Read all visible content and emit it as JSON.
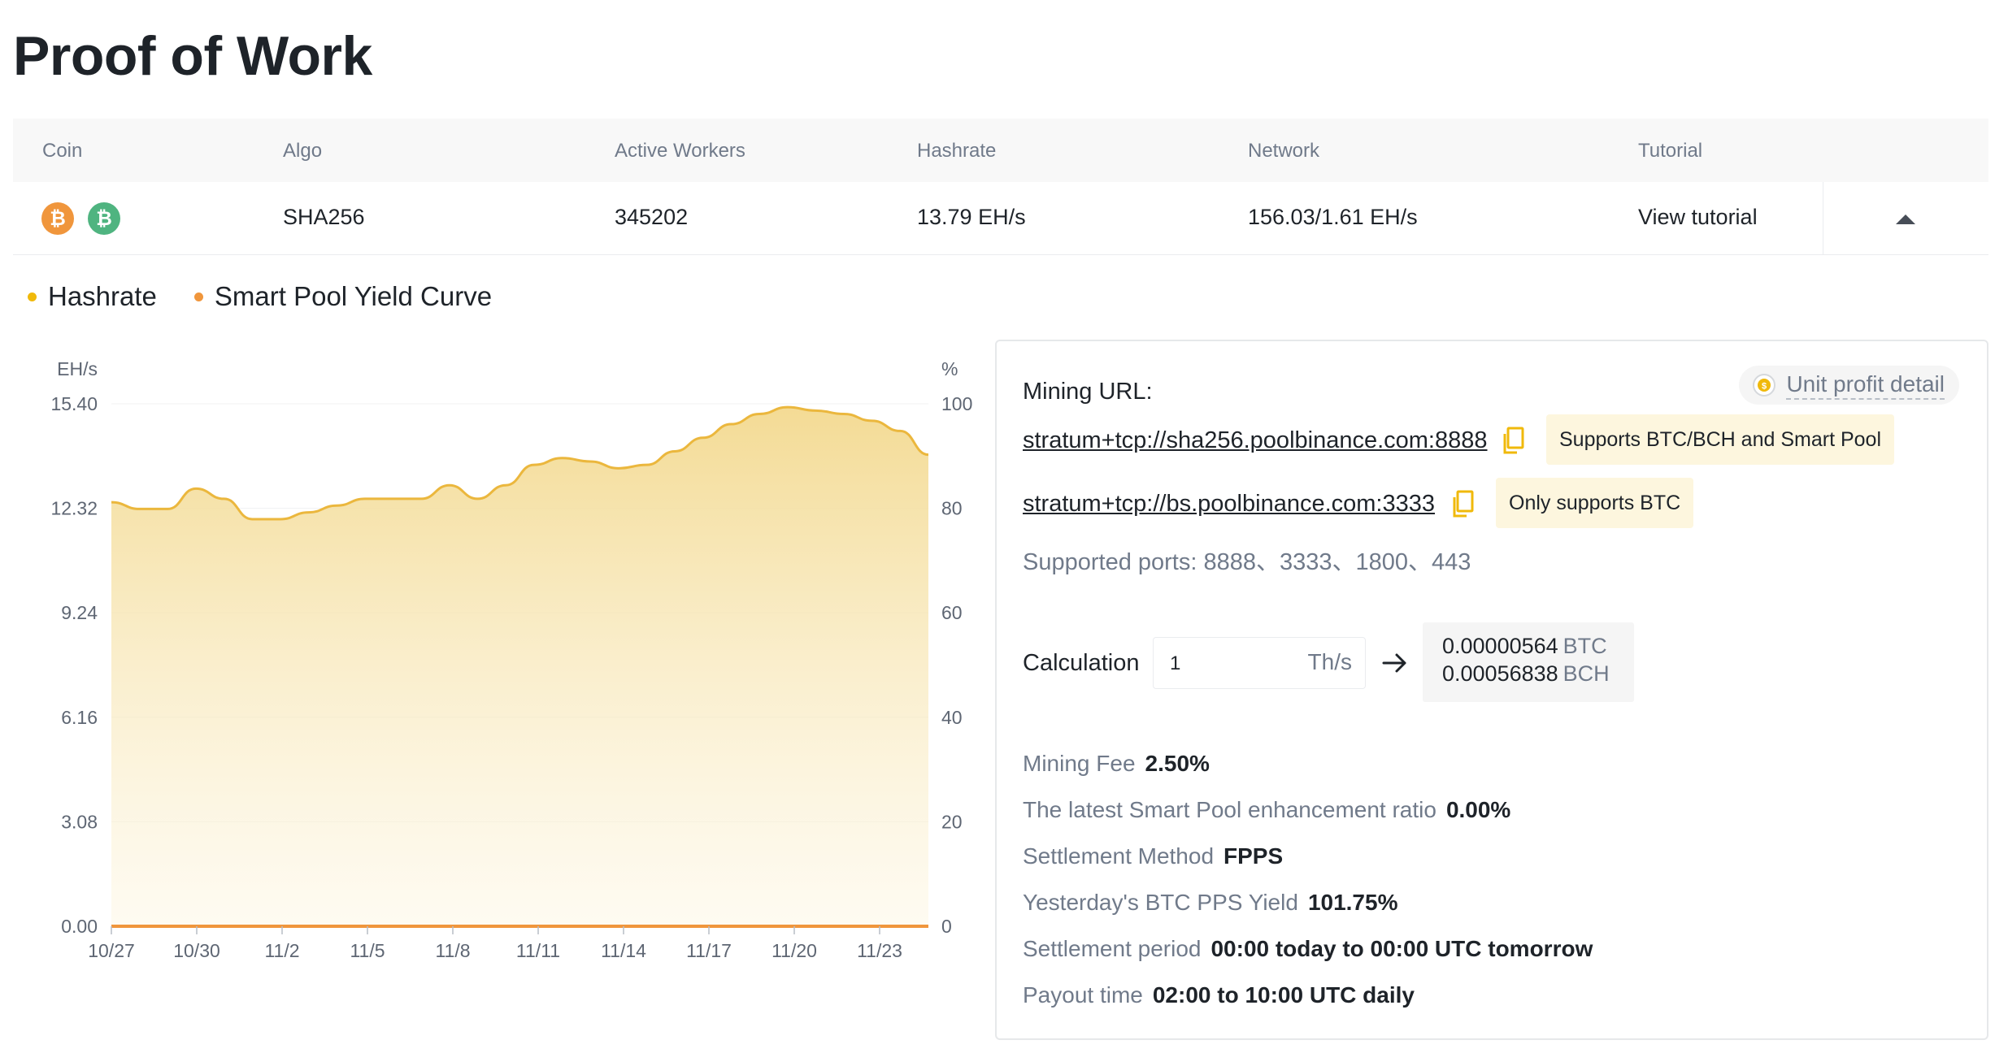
{
  "page": {
    "title": "Proof of Work"
  },
  "table": {
    "headers": {
      "coin": "Coin",
      "algo": "Algo",
      "active_workers": "Active Workers",
      "hashrate": "Hashrate",
      "network": "Network",
      "tutorial": "Tutorial"
    },
    "row": {
      "coin_icons": [
        "bitcoin-icon",
        "bitcoin-cash-icon"
      ],
      "algo": "SHA256",
      "active_workers": "345202",
      "hashrate": "13.79 EH/s",
      "network": "156.03/1.61 EH/s",
      "tutorial_link": "View tutorial"
    }
  },
  "legend": [
    {
      "label": "Hashrate",
      "color": "#f0b90b"
    },
    {
      "label": "Smart Pool Yield Curve",
      "color": "#f0963c"
    }
  ],
  "chart_data": {
    "type": "area",
    "y_left_unit": "EH/s",
    "y_right_unit": "%",
    "y_left_ticks": [
      "15.40",
      "12.32",
      "9.24",
      "6.16",
      "3.08",
      "0.00"
    ],
    "y_right_ticks": [
      "100",
      "80",
      "60",
      "40",
      "20",
      "0"
    ],
    "y_left_range": [
      0,
      15.4
    ],
    "y_right_range": [
      0,
      100
    ],
    "x_ticks": [
      "10/27",
      "10/30",
      "11/2",
      "11/5",
      "11/8",
      "11/11",
      "11/14",
      "11/17",
      "11/20",
      "11/23"
    ],
    "series": [
      {
        "name": "Hashrate",
        "axis": "left",
        "x": [
          "10/27",
          "10/28",
          "10/29",
          "10/30",
          "10/31",
          "11/1",
          "11/2",
          "11/3",
          "11/4",
          "11/5",
          "11/6",
          "11/7",
          "11/8",
          "11/9",
          "11/10",
          "11/11",
          "11/12",
          "11/13",
          "11/14",
          "11/15",
          "11/16",
          "11/17",
          "11/18",
          "11/19",
          "11/20",
          "11/21",
          "11/22",
          "11/23",
          "11/24",
          "11/25"
        ],
        "values": [
          12.5,
          12.3,
          12.3,
          12.9,
          12.6,
          12.0,
          12.0,
          12.2,
          12.4,
          12.6,
          12.6,
          12.6,
          13.0,
          12.6,
          13.0,
          13.6,
          13.8,
          13.7,
          13.5,
          13.6,
          14.0,
          14.4,
          14.8,
          15.1,
          15.3,
          15.2,
          15.1,
          14.9,
          14.6,
          13.9
        ]
      },
      {
        "name": "Smart Pool Yield Curve",
        "axis": "right",
        "x": [
          "10/27",
          "11/25"
        ],
        "values": [
          0,
          0
        ]
      }
    ],
    "grid": true
  },
  "panel": {
    "unit_profit_label": "Unit profit detail",
    "mining_url_label": "Mining URL:",
    "urls": [
      {
        "url": "stratum+tcp://sha256.poolbinance.com:8888",
        "badge": "Supports BTC/BCH and Smart Pool"
      },
      {
        "url": "stratum+tcp://bs.poolbinance.com:3333",
        "badge": "Only supports BTC"
      }
    ],
    "supported_ports": "Supported ports: 8888、3333、1800、443",
    "calculation_label": "Calculation",
    "calc_input_value": "1",
    "calc_input_unit": "Th/s",
    "results": [
      {
        "amount": "0.00000564",
        "unit": "BTC"
      },
      {
        "amount": "0.00056838",
        "unit": "BCH"
      }
    ],
    "info": [
      {
        "label": "Mining Fee",
        "value": "2.50%"
      },
      {
        "label": "The latest Smart Pool enhancement ratio",
        "value": "0.00%"
      },
      {
        "label": "Settlement Method",
        "value": "FPPS"
      },
      {
        "label": "Yesterday's BTC PPS Yield",
        "value": "101.75%"
      },
      {
        "label": "Settlement period",
        "value": "00:00 today to 00:00 UTC tomorrow"
      },
      {
        "label": "Payout time",
        "value": "02:00 to 10:00 UTC daily"
      }
    ]
  }
}
